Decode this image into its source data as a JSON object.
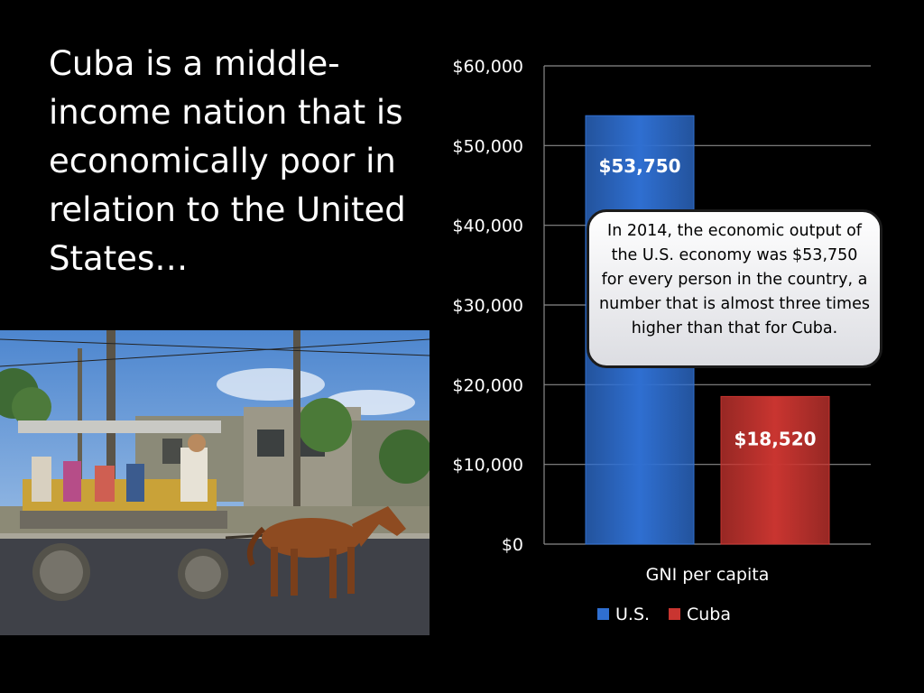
{
  "slide": {
    "title": "Cuba is a middle-income nation that is economically poor in relation to the United States…",
    "callout": "In 2014, the economic output of the U.S. economy was $53,750 for every person in the country, a number that is almost three times higher than that for Cuba."
  },
  "photo": {
    "icon": "horse-cart-photo"
  },
  "chart_data": {
    "type": "bar",
    "categories": [
      "GNI per capita"
    ],
    "series": [
      {
        "name": "U.S.",
        "values": [
          53750
        ],
        "label": "$53,750",
        "color": "#2f6fd1"
      },
      {
        "name": "Cuba",
        "values": [
          18520
        ],
        "label": "$18,520",
        "color": "#c93530"
      }
    ],
    "yticks": [
      "$0",
      "$10,000",
      "$20,000",
      "$30,000",
      "$40,000",
      "$50,000",
      "$60,000"
    ],
    "ylim": [
      0,
      60000
    ],
    "grid": true,
    "legend": "bottom"
  }
}
